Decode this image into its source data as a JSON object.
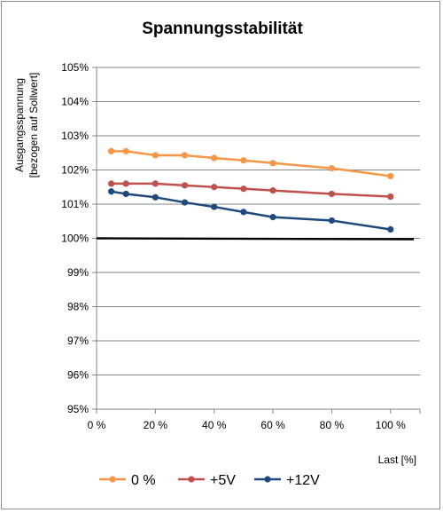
{
  "chart_data": {
    "type": "line",
    "title": "Spannungsstabilität",
    "ylabel_lines": [
      "Ausgangsspannung",
      "[bezogen auf Sollwert]"
    ],
    "xlabel": "Last [%]",
    "xlim": [
      0,
      110
    ],
    "ylim": [
      95,
      105
    ],
    "x_ticks": [
      0,
      20,
      40,
      60,
      80,
      100
    ],
    "x_tick_labels": [
      "0 %",
      "20 %",
      "40 %",
      "60 %",
      "80 %",
      "100 %"
    ],
    "y_ticks": [
      95,
      96,
      97,
      98,
      99,
      100,
      101,
      102,
      103,
      104,
      105
    ],
    "y_tick_labels": [
      "95%",
      "96%",
      "97%",
      "98%",
      "99%",
      "100%",
      "101%",
      "102%",
      "103%",
      "104%",
      "105%"
    ],
    "grid": "horizontal",
    "legend_position": "bottom",
    "x": [
      5,
      10,
      20,
      30,
      40,
      50,
      60,
      80,
      100
    ],
    "series": [
      {
        "name": "0 %",
        "color": "#f79646",
        "values": [
          102.55,
          102.55,
          102.43,
          102.43,
          102.35,
          102.28,
          102.2,
          102.05,
          101.82
        ]
      },
      {
        "name": "+5V",
        "color": "#c0504d",
        "values": [
          101.6,
          101.6,
          101.6,
          101.55,
          101.5,
          101.45,
          101.4,
          101.3,
          101.22
        ]
      },
      {
        "name": "+12V",
        "color": "#1f497d",
        "values": [
          101.37,
          101.3,
          101.2,
          101.05,
          100.92,
          100.77,
          100.62,
          100.52,
          100.26
        ]
      }
    ],
    "reference_line": {
      "value": 100,
      "color": "#000000"
    }
  }
}
